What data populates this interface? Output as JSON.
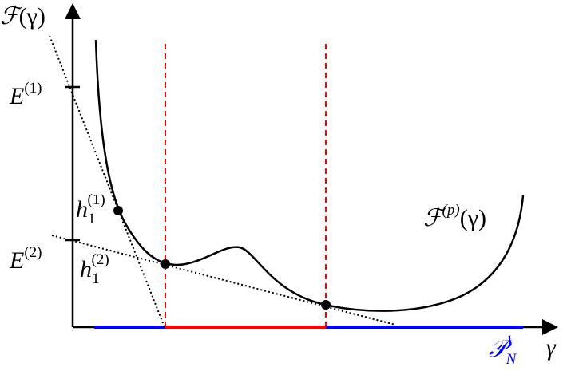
{
  "labels": {
    "y_axis": {
      "symbol": "ℱ",
      "argument": "(γ)"
    },
    "x_axis": "γ",
    "e1": {
      "symbol": "E",
      "sup": "(1)"
    },
    "e2": {
      "symbol": "E",
      "sup": "(2)"
    },
    "h1": {
      "symbol": "h",
      "sub": "1",
      "sup": "(1)"
    },
    "h2": {
      "symbol": "h",
      "sub": "1",
      "sup": "(2)"
    },
    "curve": {
      "symbol": "ℱ",
      "sup": "(p)",
      "argument": "(γ)"
    },
    "set": {
      "symbol": "𝒫",
      "sub": "N",
      "sup": "1"
    }
  }
}
